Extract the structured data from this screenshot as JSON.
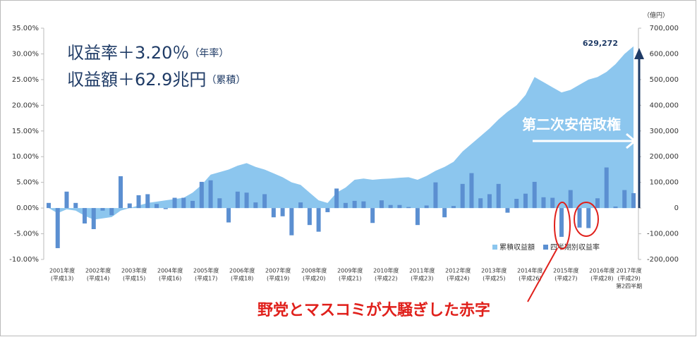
{
  "chart_data": {
    "type": "bar",
    "annotations": {
      "return_rate": "収益率＋3.20％",
      "return_rate_note": "（年率）",
      "return_amount": "収益額＋62.9兆円",
      "return_amount_note": "（累積）",
      "abe": "第二次安倍政権",
      "deficit": "野党とマスコミが大騒ぎした赤字"
    },
    "y2_unit": "（億円）",
    "categories": [
      [
        "2001年度",
        "(平成13)"
      ],
      null,
      null,
      null,
      [
        "2002年度",
        "(平成14)"
      ],
      null,
      null,
      null,
      [
        "2003年度",
        "(平成15)"
      ],
      null,
      null,
      null,
      [
        "2004年度",
        "(平成16)"
      ],
      null,
      null,
      null,
      [
        "2005年度",
        "(平成17)"
      ],
      null,
      null,
      null,
      [
        "2006年度",
        "(平成18)"
      ],
      null,
      null,
      null,
      [
        "2007年度",
        "(平成19)"
      ],
      null,
      null,
      null,
      [
        "2008年度",
        "(平成20)"
      ],
      null,
      null,
      null,
      [
        "2009年度",
        "(平成21)"
      ],
      null,
      null,
      null,
      [
        "2010年度",
        "(平成22)"
      ],
      null,
      null,
      null,
      [
        "2011年度",
        "(平成23)"
      ],
      null,
      null,
      null,
      [
        "2012年度",
        "(平成24)"
      ],
      null,
      null,
      null,
      [
        "2013年度",
        "(平成25)"
      ],
      null,
      null,
      null,
      [
        "2014年度",
        "(平成26)"
      ],
      null,
      null,
      null,
      [
        "2015年度",
        "(平成27)"
      ],
      null,
      null,
      null,
      [
        "2016年度",
        "(平成28)"
      ],
      null,
      null,
      null,
      [
        "2017年度",
        "(平成29)",
        "第2四半期"
      ],
      null
    ],
    "series": [
      {
        "name": "累積収益額",
        "type": "area",
        "axis": "y2",
        "color": "#8cc6ee",
        "values": [
          0,
          -20000,
          -5000,
          -10000,
          -30000,
          -45000,
          -40000,
          -35000,
          -10000,
          0,
          10000,
          20000,
          25000,
          30000,
          35000,
          40000,
          60000,
          90000,
          130000,
          140000,
          150000,
          165000,
          175000,
          160000,
          150000,
          135000,
          120000,
          100000,
          90000,
          60000,
          30000,
          20000,
          60000,
          80000,
          110000,
          115000,
          110000,
          113000,
          115000,
          118000,
          120000,
          110000,
          125000,
          145000,
          160000,
          180000,
          220000,
          250000,
          280000,
          310000,
          345000,
          375000,
          400000,
          440000,
          510000,
          490000,
          470000,
          450000,
          460000,
          480000,
          500000,
          510000,
          530000,
          560000,
          600000,
          629272
        ],
        "value_labels": [
          null,
          null,
          null,
          null,
          null,
          null,
          null,
          null,
          null,
          null,
          null,
          null,
          null,
          null,
          null,
          null,
          null,
          null,
          null,
          null,
          null,
          null,
          null,
          null,
          null,
          null,
          null,
          null,
          null,
          null,
          null,
          null,
          null,
          null,
          null,
          null,
          null,
          null,
          null,
          null,
          null,
          null,
          null,
          null,
          null,
          null,
          null,
          null,
          null,
          null,
          null,
          null,
          null,
          null,
          null,
          null,
          null,
          null,
          null,
          null,
          null,
          null,
          null,
          null,
          null,
          "629,272"
        ]
      },
      {
        "name": "四半期別収益率",
        "type": "bar",
        "color": "#5b8fd1",
        "values": [
          1.0,
          -7.8,
          3.2,
          1.0,
          -3.0,
          -4.1,
          -0.5,
          -1.4,
          6.2,
          0.9,
          2.5,
          2.7,
          0.8,
          -0.2,
          2.0,
          2.0,
          1.4,
          5.1,
          5.4,
          1.9,
          -2.8,
          3.2,
          3.0,
          1.1,
          2.7,
          -1.8,
          -1.6,
          -5.3,
          1.1,
          -3.3,
          -4.6,
          -0.8,
          3.8,
          1.0,
          1.4,
          1.3,
          -2.9,
          1.5,
          0.6,
          0.6,
          0.2,
          -3.3,
          0.5,
          5.0,
          -1.8,
          0.4,
          4.7,
          6.8,
          1.9,
          2.7,
          4.7,
          -0.9,
          1.8,
          2.8,
          5.1,
          2.1,
          2.0,
          -5.6,
          3.5,
          -3.8,
          -3.9,
          1.9,
          7.9,
          0.3,
          3.5,
          2.9
        ]
      }
    ],
    "ylim": [
      -10,
      35
    ],
    "yticks": [
      {
        "value": -10,
        "label": "-10.00%"
      },
      {
        "value": -5,
        "label": "-5.00%"
      },
      {
        "value": 0,
        "label": "0.00%"
      },
      {
        "value": 5,
        "label": "5.00%"
      },
      {
        "value": 10,
        "label": "10.00%"
      },
      {
        "value": 15,
        "label": "15.00%"
      },
      {
        "value": 20,
        "label": "20.00%"
      },
      {
        "value": 25,
        "label": "25.00%"
      },
      {
        "value": 30,
        "label": "30.00%"
      },
      {
        "value": 35,
        "label": "35.00%"
      }
    ],
    "y2lim": [
      -200000,
      700000
    ],
    "y2ticks": [
      {
        "value": -200000,
        "label": "-200,000"
      },
      {
        "value": -100000,
        "label": "-100,000"
      },
      0,
      {
        "value": 100000,
        "label": "100,000"
      },
      {
        "value": 200000,
        "label": "200,000"
      },
      {
        "value": 300000,
        "label": "300,000"
      },
      {
        "value": 400000,
        "label": "400,000"
      },
      {
        "value": 500000,
        "label": "500,000"
      },
      {
        "value": 600000,
        "label": "600,000"
      },
      {
        "value": 700000,
        "label": "700,000"
      }
    ],
    "legend": "lower right"
  }
}
